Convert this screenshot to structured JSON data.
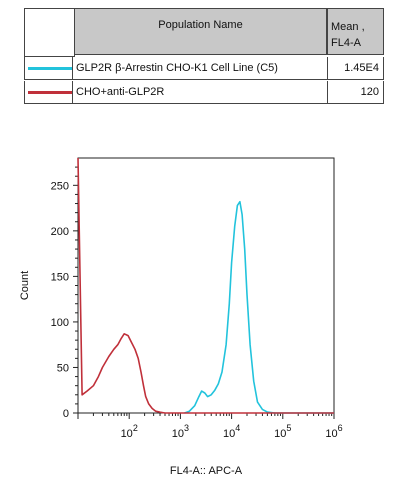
{
  "legend": {
    "header_name": "Population Name",
    "header_mean_line1": "Mean ,",
    "header_mean_line2": "FL4-A",
    "rows": [
      {
        "name": "GLP2R β-Arrestin CHO-K1 Cell Line (C5)",
        "mean": "1.45E4",
        "color": "#22c3dc"
      },
      {
        "name": "CHO+anti-GLP2R",
        "mean": "120",
        "color": "#c0303a"
      }
    ]
  },
  "chart_data": {
    "type": "line",
    "xlabel": "FL4-A:: APC-A",
    "ylabel": "Count",
    "x_scale": "log",
    "xlim": [
      10,
      1000000
    ],
    "ylim": [
      0,
      280
    ],
    "y_ticks": [
      0,
      50,
      100,
      150,
      200,
      250
    ],
    "x_tick_labels": [
      {
        "base": "10",
        "exp": "2"
      },
      {
        "base": "10",
        "exp": "3"
      },
      {
        "base": "10",
        "exp": "4"
      },
      {
        "base": "10",
        "exp": "5"
      },
      {
        "base": "10",
        "exp": "6"
      }
    ],
    "series": [
      {
        "name": "GLP2R β-Arrestin CHO-K1 Cell Line (C5)",
        "color": "#22c3dc",
        "x": [
          1200,
          1500,
          1900,
          2300,
          2600,
          3000,
          3400,
          4000,
          4700,
          5500,
          6500,
          7800,
          9000,
          10000,
          11500,
          13000,
          14500,
          16000,
          18000,
          20000,
          23000,
          27000,
          32000,
          40000,
          50000,
          70000,
          100000,
          200000,
          500000,
          1000000
        ],
        "y": [
          0,
          2,
          8,
          18,
          24,
          22,
          18,
          20,
          25,
          32,
          45,
          75,
          120,
          165,
          205,
          228,
          232,
          218,
          180,
          130,
          75,
          35,
          12,
          4,
          1,
          0,
          0,
          0,
          0,
          0
        ]
      },
      {
        "name": "CHO+anti-GLP2R",
        "color": "#c0303a",
        "x": [
          10,
          12,
          15,
          20,
          25,
          30,
          40,
          50,
          60,
          70,
          80,
          95,
          110,
          130,
          150,
          170,
          190,
          210,
          240,
          280,
          330,
          400,
          500,
          650,
          800,
          1000,
          1500,
          3000,
          10000,
          1000000
        ],
        "y": [
          280,
          20,
          24,
          30,
          40,
          50,
          62,
          70,
          75,
          82,
          87,
          85,
          78,
          70,
          60,
          45,
          30,
          18,
          10,
          5,
          2,
          1,
          0,
          0,
          0,
          0,
          0,
          0,
          0,
          0
        ]
      }
    ]
  }
}
